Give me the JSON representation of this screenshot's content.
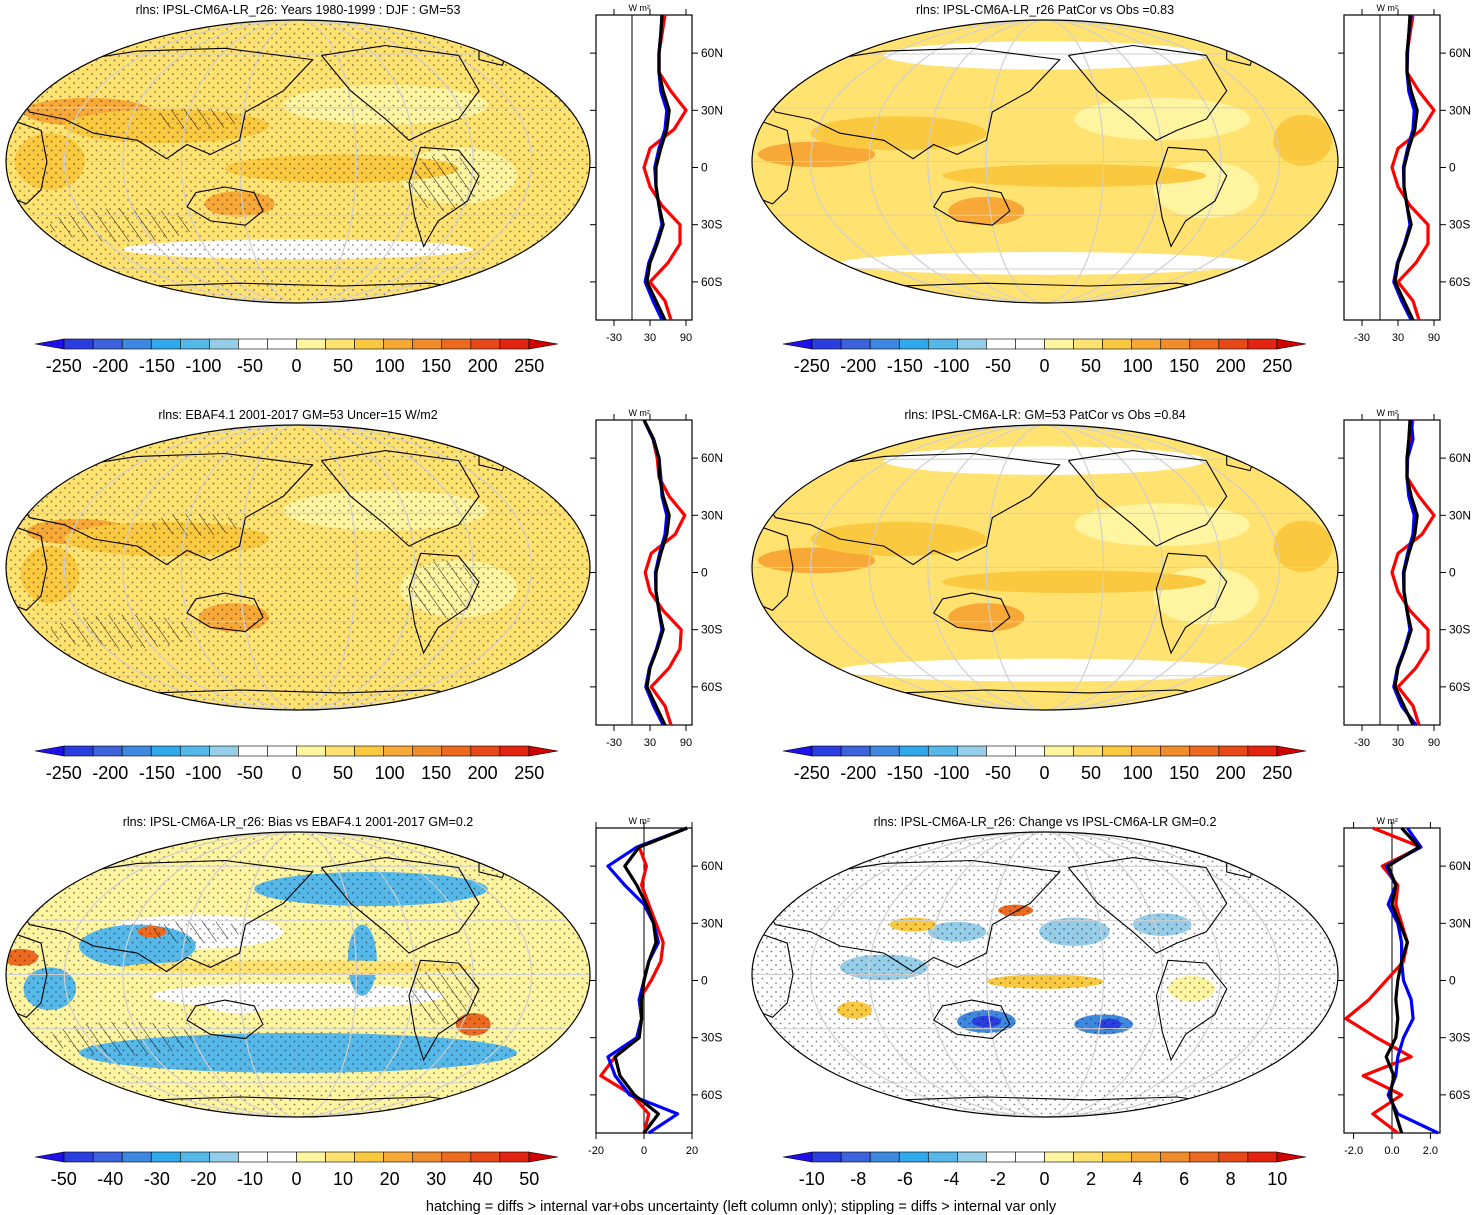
{
  "figure": {
    "caption": "hatching = diffs > internal var+obs uncertainty (left column only); stippling = diffs > internal var only"
  },
  "panels": [
    {
      "title": "rlns: IPSL-CM6A-LR_r26: Years 1980-1999 : DJF : GM=53",
      "map_palette": "abs_model",
      "colorbar_labels": [
        "-250",
        "-200",
        "-150",
        "-100",
        "-50",
        "0",
        "50",
        "100",
        "150",
        "200",
        "250"
      ],
      "profile_units": "W m²",
      "profile_xticks": [
        "-30",
        "30",
        "90"
      ],
      "profile_xlim": [
        -60,
        100
      ]
    },
    {
      "title": "rlns: IPSL-CM6A-LR_r26 PatCor vs Obs =0.83",
      "map_palette": "abs_smooth",
      "colorbar_labels": [
        "-250",
        "-200",
        "-150",
        "-100",
        "-50",
        "0",
        "50",
        "100",
        "150",
        "200",
        "250"
      ],
      "profile_units": "W m²",
      "profile_xticks": [
        "-30",
        "30",
        "90"
      ],
      "profile_xlim": [
        -60,
        100
      ]
    },
    {
      "title": "rlns: EBAF4.1 2001-2017 GM=53 Uncer=15 W/m2",
      "map_palette": "abs_obs",
      "colorbar_labels": [
        "-250",
        "-200",
        "-150",
        "-100",
        "-50",
        "0",
        "50",
        "100",
        "150",
        "200",
        "250"
      ],
      "profile_units": "W m²",
      "profile_xticks": [
        "-30",
        "30",
        "90"
      ],
      "profile_xlim": [
        -60,
        100
      ]
    },
    {
      "title": "rlns: IPSL-CM6A-LR: GM=53 PatCor vs Obs =0.84",
      "map_palette": "abs_smooth",
      "colorbar_labels": [
        "-250",
        "-200",
        "-150",
        "-100",
        "-50",
        "0",
        "50",
        "100",
        "150",
        "200",
        "250"
      ],
      "profile_units": "W m²",
      "profile_xticks": [
        "-30",
        "30",
        "90"
      ],
      "profile_xlim": [
        -60,
        100
      ]
    },
    {
      "title": "rlns: IPSL-CM6A-LR_r26: Bias vs EBAF4.1 2001-2017 GM=0.2",
      "map_palette": "bias",
      "colorbar_labels": [
        "-50",
        "-40",
        "-30",
        "-20",
        "-10",
        "0",
        "10",
        "20",
        "30",
        "40",
        "50"
      ],
      "profile_units": "W m²",
      "profile_xticks": [
        "-20",
        "0",
        "20"
      ],
      "profile_xlim": [
        -20,
        20
      ]
    },
    {
      "title": "rlns: IPSL-CM6A-LR_r26: Change vs IPSL-CM6A-LR GM=0.2",
      "map_palette": "change",
      "colorbar_labels": [
        "-10",
        "-8",
        "-6",
        "-4",
        "-2",
        "0",
        "2",
        "4",
        "6",
        "8",
        "10"
      ],
      "profile_units": "W m²",
      "profile_xticks": [
        "-2.0",
        "0.0",
        "2.0"
      ],
      "profile_xlim": [
        -2.5,
        2.5
      ]
    }
  ],
  "chart_data": [
    {
      "type": "line",
      "title": "rlns: IPSL-CM6A-LR_r26: Years 1980-1999 : DJF : GM=53",
      "xlabel": "W m²",
      "y_ticks": [
        "60N",
        "30N",
        "0",
        "30S",
        "60S"
      ],
      "ylim": [
        -80,
        80
      ],
      "x_ticks": [
        "-30",
        "30",
        "90"
      ],
      "series": [
        {
          "color": "#ff0000",
          "lat": [
            80,
            70,
            60,
            50,
            40,
            30,
            20,
            10,
            0,
            -10,
            -20,
            -30,
            -40,
            -50,
            -60,
            -70,
            -80
          ],
          "values": [
            55,
            50,
            45,
            45,
            65,
            90,
            70,
            30,
            20,
            30,
            50,
            80,
            80,
            60,
            30,
            55,
            65
          ]
        },
        {
          "color": "#0000ff",
          "lat": [
            80,
            70,
            60,
            50,
            40,
            30,
            20,
            10,
            0,
            -10,
            -20,
            -30,
            -40,
            -50,
            -60,
            -70,
            -80
          ],
          "values": [
            50,
            48,
            45,
            45,
            48,
            58,
            55,
            45,
            38,
            40,
            45,
            50,
            40,
            28,
            22,
            35,
            50
          ]
        },
        {
          "color": "#000000",
          "lat": [
            80,
            70,
            60,
            50,
            40,
            30,
            20,
            10,
            0,
            -10,
            -20,
            -30,
            -40,
            -50,
            -60,
            -70,
            -80
          ],
          "values": [
            50,
            48,
            45,
            45,
            52,
            62,
            58,
            48,
            40,
            40,
            45,
            52,
            42,
            30,
            25,
            40,
            55
          ]
        }
      ]
    },
    {
      "type": "line",
      "title": "rlns: IPSL-CM6A-LR_r26 PatCor vs Obs =0.83",
      "xlabel": "W m²",
      "y_ticks": [
        "60N",
        "30N",
        "0",
        "30S",
        "60S"
      ],
      "ylim": [
        -80,
        80
      ],
      "x_ticks": [
        "-30",
        "30",
        "90"
      ],
      "series": [
        {
          "color": "#ff0000",
          "lat": [
            80,
            70,
            60,
            50,
            40,
            30,
            20,
            10,
            0,
            -10,
            -20,
            -30,
            -40,
            -50,
            -60,
            -70,
            -80
          ],
          "values": [
            55,
            50,
            45,
            45,
            65,
            90,
            70,
            30,
            20,
            30,
            50,
            80,
            80,
            60,
            30,
            55,
            65
          ]
        },
        {
          "color": "#0000ff",
          "lat": [
            80,
            70,
            60,
            50,
            40,
            30,
            20,
            10,
            0,
            -10,
            -20,
            -30,
            -40,
            -50,
            -60,
            -70,
            -80
          ],
          "values": [
            52,
            48,
            46,
            45,
            48,
            57,
            55,
            46,
            39,
            40,
            45,
            50,
            41,
            29,
            23,
            36,
            52
          ]
        },
        {
          "color": "#000000",
          "lat": [
            80,
            70,
            60,
            50,
            40,
            30,
            20,
            10,
            0,
            -10,
            -20,
            -30,
            -40,
            -50,
            -60,
            -70,
            -80
          ],
          "values": [
            50,
            48,
            45,
            45,
            52,
            62,
            58,
            48,
            40,
            40,
            45,
            52,
            42,
            30,
            25,
            40,
            55
          ]
        }
      ]
    },
    {
      "type": "line",
      "title": "rlns: EBAF4.1 2001-2017 GM=53 Uncer=15 W/m2",
      "xlabel": "W m²",
      "y_ticks": [
        "60N",
        "30N",
        "0",
        "30S",
        "60S"
      ],
      "ylim": [
        -80,
        80
      ],
      "x_ticks": [
        "-30",
        "30",
        "90"
      ],
      "series": [
        {
          "color": "#ff0000",
          "lat": [
            80,
            70,
            60,
            50,
            40,
            30,
            20,
            10,
            0,
            -10,
            -20,
            -30,
            -40,
            -50,
            -60,
            -70,
            -80
          ],
          "values": [
            20,
            35,
            42,
            45,
            62,
            88,
            72,
            32,
            22,
            30,
            52,
            82,
            80,
            62,
            32,
            55,
            65
          ]
        },
        {
          "color": "#0000ff",
          "lat": [
            80,
            70,
            60,
            50,
            40,
            30,
            20,
            10,
            0,
            -10,
            -20,
            -30,
            -40,
            -50,
            -60,
            -70,
            -80
          ],
          "values": [
            20,
            35,
            45,
            48,
            50,
            58,
            55,
            46,
            39,
            40,
            45,
            50,
            41,
            29,
            23,
            36,
            52
          ]
        },
        {
          "color": "#000000",
          "lat": [
            80,
            70,
            60,
            50,
            40,
            30,
            20,
            10,
            0,
            -10,
            -20,
            -30,
            -40,
            -50,
            -60,
            -70,
            -80
          ],
          "values": [
            20,
            36,
            45,
            46,
            52,
            62,
            58,
            48,
            40,
            40,
            45,
            52,
            42,
            30,
            25,
            40,
            55
          ]
        }
      ]
    },
    {
      "type": "line",
      "title": "rlns: IPSL-CM6A-LR: GM=53 PatCor vs Obs =0.84",
      "xlabel": "W m²",
      "y_ticks": [
        "60N",
        "30N",
        "0",
        "30S",
        "60S"
      ],
      "ylim": [
        -80,
        80
      ],
      "x_ticks": [
        "-30",
        "30",
        "90"
      ],
      "series": [
        {
          "color": "#ff0000",
          "lat": [
            80,
            70,
            60,
            50,
            40,
            30,
            20,
            10,
            0,
            -10,
            -20,
            -30,
            -40,
            -50,
            -60,
            -70,
            -80
          ],
          "values": [
            55,
            50,
            45,
            45,
            65,
            90,
            70,
            30,
            20,
            30,
            50,
            80,
            80,
            60,
            30,
            55,
            65
          ]
        },
        {
          "color": "#0000ff",
          "lat": [
            80,
            70,
            60,
            50,
            40,
            30,
            20,
            10,
            0,
            -10,
            -20,
            -30,
            -40,
            -50,
            -60,
            -70,
            -80
          ],
          "values": [
            52,
            55,
            46,
            45,
            48,
            57,
            55,
            46,
            39,
            40,
            45,
            50,
            41,
            29,
            23,
            36,
            60
          ]
        },
        {
          "color": "#000000",
          "lat": [
            80,
            70,
            60,
            50,
            40,
            30,
            20,
            10,
            0,
            -10,
            -20,
            -30,
            -40,
            -50,
            -60,
            -70,
            -80
          ],
          "values": [
            50,
            48,
            45,
            45,
            52,
            62,
            58,
            48,
            40,
            40,
            45,
            52,
            42,
            30,
            25,
            40,
            55
          ]
        }
      ]
    },
    {
      "type": "line",
      "title": "rlns: IPSL-CM6A-LR_r26: Bias vs EBAF4.1 2001-2017 GM=0.2",
      "xlabel": "W m²",
      "y_ticks": [
        "60N",
        "30N",
        "0",
        "30S",
        "60S"
      ],
      "ylim": [
        -80,
        80
      ],
      "x_ticks": [
        "-20",
        "0",
        "20"
      ],
      "series": [
        {
          "color": "#ff0000",
          "lat": [
            80,
            70,
            60,
            50,
            40,
            30,
            20,
            10,
            0,
            -10,
            -20,
            -30,
            -40,
            -50,
            -60,
            -70,
            -80
          ],
          "values": [
            18,
            -2,
            1,
            -1,
            2,
            5,
            8,
            7,
            3,
            -2,
            -1,
            -3,
            -12,
            -18,
            -5,
            2,
            0
          ]
        },
        {
          "color": "#0000ff",
          "lat": [
            80,
            70,
            60,
            50,
            40,
            30,
            20,
            10,
            0,
            -10,
            -20,
            -30,
            -40,
            -50,
            -60,
            -70,
            -80
          ],
          "values": [
            18,
            -3,
            -15,
            -8,
            0,
            4,
            6,
            2,
            0,
            -2,
            -1,
            -3,
            -15,
            -12,
            -6,
            14,
            2
          ]
        },
        {
          "color": "#000000",
          "lat": [
            80,
            70,
            60,
            50,
            40,
            30,
            20,
            10,
            0,
            -10,
            -20,
            -30,
            -40,
            -50,
            -60,
            -70,
            -80
          ],
          "values": [
            18,
            -2,
            -8,
            -3,
            1,
            4,
            5,
            2,
            0,
            -1,
            -1,
            -2,
            -12,
            -10,
            -4,
            6,
            0
          ]
        }
      ]
    },
    {
      "type": "line",
      "title": "rlns: IPSL-CM6A-LR_r26: Change vs IPSL-CM6A-LR GM=0.2",
      "xlabel": "W m²",
      "y_ticks": [
        "60N",
        "30N",
        "0",
        "30S",
        "60S"
      ],
      "ylim": [
        -80,
        80
      ],
      "x_ticks": [
        "-2.0",
        "0.0",
        "2.0"
      ],
      "series": [
        {
          "color": "#ff0000",
          "lat": [
            80,
            70,
            60,
            50,
            40,
            30,
            20,
            10,
            0,
            -10,
            -20,
            -30,
            -40,
            -50,
            -60,
            -70,
            -80
          ],
          "values": [
            -1.0,
            1.5,
            -0.5,
            0.3,
            0.2,
            0.5,
            0.8,
            0.6,
            -0.3,
            -1.2,
            -2.4,
            -0.8,
            1.0,
            -1.5,
            0.5,
            -1.0,
            0.3
          ]
        },
        {
          "color": "#0000ff",
          "lat": [
            80,
            70,
            60,
            50,
            40,
            30,
            20,
            10,
            0,
            -10,
            -20,
            -30,
            -40,
            -50,
            -60,
            -70,
            -80
          ],
          "values": [
            0.8,
            1.5,
            -0.3,
            0.2,
            -0.2,
            0.3,
            0.5,
            0.5,
            0.6,
            1.0,
            1.1,
            0.6,
            0.3,
            0.2,
            -0.2,
            0.3,
            2.4
          ]
        },
        {
          "color": "#000000",
          "lat": [
            80,
            70,
            60,
            50,
            40,
            30,
            20,
            10,
            0,
            -10,
            -20,
            -30,
            -40,
            -50,
            -60,
            -70,
            -80
          ],
          "values": [
            0.5,
            1.4,
            -0.2,
            0.2,
            0.0,
            0.4,
            0.8,
            0.5,
            0.3,
            0.2,
            0.3,
            0.2,
            -0.3,
            0.1,
            -0.1,
            0.2,
            0.5
          ]
        }
      ]
    }
  ],
  "colors": {
    "colorbar_scale": [
      "#2010e8",
      "#2a3ee0",
      "#3c62dc",
      "#3f88e0",
      "#30a8ec",
      "#56b8e8",
      "#96cde8",
      "#ffffff",
      "#ffffff",
      "#fff4a0",
      "#ffe270",
      "#fbc93f",
      "#f7a836",
      "#f18c2c",
      "#ec6920",
      "#e74818",
      "#e32410",
      "#d00000"
    ],
    "grid": "#cfcfcf",
    "coast": "#000000"
  }
}
